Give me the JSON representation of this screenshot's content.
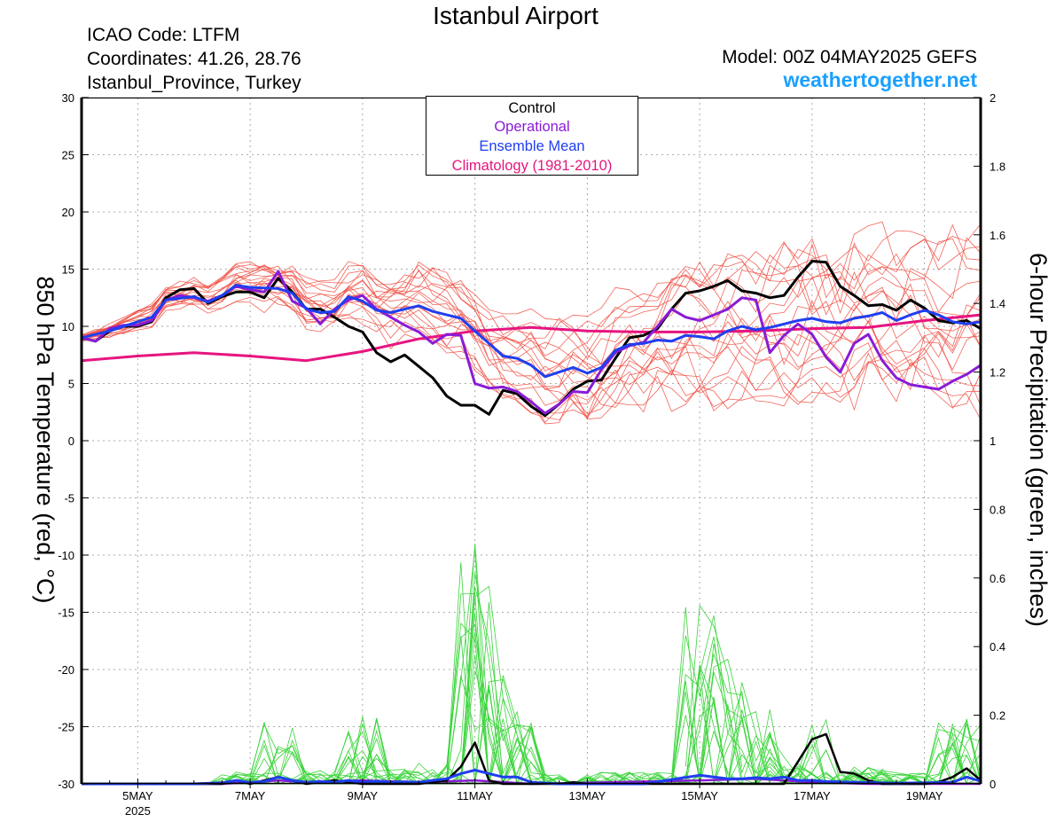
{
  "header": {
    "title": "Istanbul Airport",
    "icao": "ICAO Code: LTFM",
    "coordinates": "Coordinates: 41.26, 28.76",
    "location": "Istanbul_Province, Turkey",
    "model": "Model: 00Z 04MAY2025 GEFS",
    "website": "weathertogether.net"
  },
  "chart_data": {
    "type": "line",
    "title": "Istanbul Airport",
    "ylabel_left": "850 hPa Temperature (red, °C)",
    "ylabel_right": "6-hour Precipitation (green, inches)",
    "x_range_hours_since_start": [
      0,
      384
    ],
    "x_ticks": [
      {
        "label": "5MAY",
        "sublabel": "2025",
        "h": 24
      },
      {
        "label": "7MAY",
        "h": 72
      },
      {
        "label": "9MAY",
        "h": 120
      },
      {
        "label": "11MAY",
        "h": 168
      },
      {
        "label": "13MAY",
        "h": 216
      },
      {
        "label": "15MAY",
        "h": 264
      },
      {
        "label": "17MAY",
        "h": 312
      },
      {
        "label": "19MAY",
        "h": 360
      }
    ],
    "y_left": {
      "range": [
        -30,
        30
      ],
      "ticks": [
        "30",
        "25",
        "20",
        "15",
        "10",
        "5",
        "0",
        "-5",
        "-10",
        "-15",
        "-20",
        "-25",
        "-30"
      ]
    },
    "y_right": {
      "range": [
        0,
        2
      ],
      "ticks": [
        "2",
        "1.8",
        "1.6",
        "1.4",
        "1.2",
        "1",
        "0.8",
        "0.6",
        "0.4",
        "0.2",
        "0"
      ]
    },
    "grid": true,
    "legend": {
      "placement": "top-center",
      "entries": [
        {
          "label": "Control",
          "color": "#000000"
        },
        {
          "label": "Operational",
          "color": "#8a1bd6"
        },
        {
          "label": "Ensemble Mean",
          "color": "#1f3ff0"
        },
        {
          "label": "Climatology (1981-2010)",
          "color": "#e6157f"
        }
      ]
    },
    "colors": {
      "members_temp": "#f04a3e",
      "members_precip": "#3ad43a",
      "control": "#000000",
      "operational": "#8a1bd6",
      "ensemble_mean": "#1f3ff0",
      "climatology": "#e6157f"
    },
    "series_temperature": {
      "control": [
        [
          0,
          9
        ],
        [
          6,
          8.7
        ],
        [
          12,
          9.6
        ],
        [
          18,
          10
        ],
        [
          24,
          10
        ],
        [
          30,
          10.4
        ],
        [
          36,
          12.5
        ],
        [
          42,
          13.2
        ],
        [
          48,
          13.3
        ],
        [
          54,
          12
        ],
        [
          60,
          12.6
        ],
        [
          66,
          13
        ],
        [
          72,
          13
        ],
        [
          78,
          12.5
        ],
        [
          84,
          14.2
        ],
        [
          90,
          13
        ],
        [
          96,
          11.5
        ],
        [
          102,
          11.5
        ],
        [
          108,
          10.8
        ],
        [
          114,
          10
        ],
        [
          120,
          9.5
        ],
        [
          126,
          7.7
        ],
        [
          132,
          6.9
        ],
        [
          138,
          7.5
        ],
        [
          144,
          6.5
        ],
        [
          150,
          5.5
        ],
        [
          156,
          3.9
        ],
        [
          162,
          3.1
        ],
        [
          168,
          3.1
        ],
        [
          174,
          2.3
        ],
        [
          180,
          4.4
        ],
        [
          186,
          4.1
        ],
        [
          192,
          3
        ],
        [
          198,
          2.2
        ],
        [
          204,
          3.2
        ],
        [
          210,
          4.5
        ],
        [
          216,
          5.2
        ],
        [
          222,
          5.3
        ],
        [
          228,
          7.2
        ],
        [
          234,
          9
        ],
        [
          240,
          9.2
        ],
        [
          246,
          9.8
        ],
        [
          252,
          11.5
        ],
        [
          258,
          12.9
        ],
        [
          264,
          13.1
        ],
        [
          270,
          13.5
        ],
        [
          276,
          14
        ],
        [
          282,
          13.1
        ],
        [
          288,
          12.9
        ],
        [
          294,
          12.5
        ],
        [
          300,
          12.7
        ],
        [
          306,
          14.3
        ],
        [
          312,
          15.7
        ],
        [
          318,
          15.6
        ],
        [
          324,
          13.5
        ],
        [
          330,
          12.7
        ],
        [
          336,
          11.8
        ],
        [
          342,
          11.9
        ],
        [
          348,
          11.4
        ],
        [
          354,
          12.3
        ],
        [
          360,
          11.6
        ],
        [
          366,
          10.5
        ],
        [
          372,
          10.3
        ],
        [
          378,
          10.5
        ],
        [
          384,
          9.8
        ]
      ],
      "operational": [
        [
          0,
          9
        ],
        [
          6,
          8.7
        ],
        [
          12,
          9.8
        ],
        [
          18,
          10.1
        ],
        [
          24,
          10.1
        ],
        [
          30,
          10.5
        ],
        [
          36,
          12.3
        ],
        [
          42,
          12.7
        ],
        [
          48,
          12.5
        ],
        [
          54,
          12.2
        ],
        [
          60,
          12.7
        ],
        [
          66,
          13.5
        ],
        [
          72,
          13.2
        ],
        [
          78,
          13
        ],
        [
          84,
          14.8
        ],
        [
          90,
          12.2
        ],
        [
          96,
          11.6
        ],
        [
          102,
          10.2
        ],
        [
          108,
          11.5
        ],
        [
          114,
          12.3
        ],
        [
          120,
          12.7
        ],
        [
          126,
          11.5
        ],
        [
          132,
          10.8
        ],
        [
          138,
          10.1
        ],
        [
          144,
          9.5
        ],
        [
          150,
          8.5
        ],
        [
          156,
          9.3
        ],
        [
          162,
          9.2
        ],
        [
          168,
          5
        ],
        [
          174,
          4.6
        ],
        [
          180,
          4.7
        ],
        [
          186,
          4.3
        ],
        [
          192,
          3.4
        ],
        [
          198,
          2.4
        ],
        [
          204,
          3.2
        ],
        [
          210,
          4.3
        ],
        [
          216,
          4.2
        ],
        [
          222,
          6.2
        ],
        [
          228,
          7.7
        ],
        [
          234,
          8.3
        ],
        [
          240,
          8.6
        ],
        [
          246,
          10
        ],
        [
          252,
          11.5
        ],
        [
          258,
          10.8
        ],
        [
          264,
          10.5
        ],
        [
          270,
          11
        ],
        [
          276,
          11.5
        ],
        [
          282,
          12.5
        ],
        [
          288,
          12.3
        ],
        [
          294,
          7.7
        ],
        [
          300,
          9.2
        ],
        [
          306,
          10.2
        ],
        [
          312,
          9.3
        ],
        [
          318,
          7.3
        ],
        [
          324,
          6
        ],
        [
          330,
          8.5
        ],
        [
          336,
          9.3
        ],
        [
          342,
          7
        ],
        [
          348,
          5.5
        ],
        [
          354,
          4.9
        ],
        [
          360,
          4.7
        ],
        [
          366,
          4.5
        ],
        [
          372,
          5.2
        ],
        [
          378,
          5.8
        ],
        [
          384,
          6.6
        ]
      ],
      "ensemble_mean": [
        [
          0,
          9
        ],
        [
          12,
          9.6
        ],
        [
          24,
          10.4
        ],
        [
          30,
          10.8
        ],
        [
          36,
          12.3
        ],
        [
          48,
          12.6
        ],
        [
          54,
          12.1
        ],
        [
          60,
          12.7
        ],
        [
          66,
          13.6
        ],
        [
          72,
          13.4
        ],
        [
          84,
          13.3
        ],
        [
          90,
          12.9
        ],
        [
          96,
          11.5
        ],
        [
          102,
          11.2
        ],
        [
          108,
          11.3
        ],
        [
          114,
          12.6
        ],
        [
          120,
          12.2
        ],
        [
          126,
          11.4
        ],
        [
          132,
          11.2
        ],
        [
          138,
          11.5
        ],
        [
          144,
          11.8
        ],
        [
          150,
          11.3
        ],
        [
          156,
          11
        ],
        [
          162,
          10.7
        ],
        [
          168,
          9.6
        ],
        [
          174,
          8.5
        ],
        [
          180,
          7.4
        ],
        [
          186,
          7.2
        ],
        [
          192,
          6.6
        ],
        [
          198,
          5.6
        ],
        [
          204,
          6
        ],
        [
          210,
          6.4
        ],
        [
          216,
          5.9
        ],
        [
          222,
          6.4
        ],
        [
          228,
          7.9
        ],
        [
          234,
          8.4
        ],
        [
          240,
          8.5
        ],
        [
          246,
          8.8
        ],
        [
          252,
          8.7
        ],
        [
          258,
          9.2
        ],
        [
          264,
          9.1
        ],
        [
          270,
          8.9
        ],
        [
          276,
          9.6
        ],
        [
          282,
          10
        ],
        [
          288,
          9.7
        ],
        [
          294,
          9.9
        ],
        [
          300,
          10.2
        ],
        [
          306,
          10.5
        ],
        [
          312,
          10.7
        ],
        [
          318,
          10.4
        ],
        [
          324,
          10.3
        ],
        [
          330,
          10.7
        ],
        [
          336,
          10.9
        ],
        [
          342,
          11.2
        ],
        [
          348,
          10.5
        ],
        [
          354,
          11
        ],
        [
          360,
          11.4
        ],
        [
          366,
          11
        ],
        [
          372,
          10.4
        ],
        [
          378,
          10.2
        ],
        [
          384,
          10.4
        ]
      ],
      "climatology": [
        [
          0,
          7
        ],
        [
          24,
          7.4
        ],
        [
          48,
          7.7
        ],
        [
          72,
          7.4
        ],
        [
          96,
          7
        ],
        [
          120,
          7.8
        ],
        [
          144,
          8.9
        ],
        [
          168,
          9.6
        ],
        [
          192,
          9.9
        ],
        [
          216,
          9.6
        ],
        [
          240,
          9.5
        ],
        [
          264,
          9.5
        ],
        [
          288,
          9.6
        ],
        [
          312,
          9.8
        ],
        [
          336,
          9.9
        ],
        [
          360,
          10.5
        ],
        [
          384,
          11
        ]
      ]
    },
    "series_precipitation": {
      "control": [
        [
          0,
          0
        ],
        [
          48,
          0
        ],
        [
          60,
          0
        ],
        [
          66,
          0.01
        ],
        [
          72,
          0
        ],
        [
          78,
          0.01
        ],
        [
          84,
          0.02
        ],
        [
          90,
          0.01
        ],
        [
          96,
          0
        ],
        [
          108,
          0.01
        ],
        [
          114,
          0.005
        ],
        [
          120,
          0
        ],
        [
          144,
          0
        ],
        [
          156,
          0.01
        ],
        [
          162,
          0.05
        ],
        [
          168,
          0.12
        ],
        [
          174,
          0.01
        ],
        [
          180,
          0
        ],
        [
          204,
          0
        ],
        [
          210,
          0.005
        ],
        [
          216,
          0
        ],
        [
          300,
          0
        ],
        [
          312,
          0.13
        ],
        [
          318,
          0.145
        ],
        [
          324,
          0.035
        ],
        [
          330,
          0.03
        ],
        [
          336,
          0.01
        ],
        [
          342,
          0
        ],
        [
          360,
          0
        ],
        [
          366,
          0.005
        ],
        [
          372,
          0.02
        ],
        [
          378,
          0.045
        ],
        [
          384,
          0.01
        ]
      ],
      "operational": [
        [
          0,
          0
        ],
        [
          60,
          0
        ],
        [
          72,
          0.005
        ],
        [
          84,
          0.01
        ],
        [
          96,
          0.005
        ],
        [
          120,
          0.01
        ],
        [
          144,
          0.005
        ],
        [
          168,
          0.01
        ],
        [
          192,
          0
        ],
        [
          264,
          0.01
        ],
        [
          288,
          0.015
        ],
        [
          312,
          0.005
        ],
        [
          336,
          0
        ],
        [
          384,
          0
        ]
      ],
      "ensemble_mean": [
        [
          0,
          0
        ],
        [
          48,
          0
        ],
        [
          60,
          0.003
        ],
        [
          66,
          0.01
        ],
        [
          72,
          0.004
        ],
        [
          78,
          0.007
        ],
        [
          84,
          0.02
        ],
        [
          90,
          0.01
        ],
        [
          96,
          0.005
        ],
        [
          102,
          0.007
        ],
        [
          108,
          0.005
        ],
        [
          114,
          0.01
        ],
        [
          120,
          0.005
        ],
        [
          126,
          0.008
        ],
        [
          132,
          0.005
        ],
        [
          138,
          0.006
        ],
        [
          144,
          0.005
        ],
        [
          150,
          0.01
        ],
        [
          156,
          0.015
        ],
        [
          162,
          0.03
        ],
        [
          168,
          0.04
        ],
        [
          174,
          0.03
        ],
        [
          180,
          0.02
        ],
        [
          186,
          0.02
        ],
        [
          192,
          0.005
        ],
        [
          204,
          0
        ],
        [
          240,
          0
        ],
        [
          264,
          0.025
        ],
        [
          270,
          0.02
        ],
        [
          276,
          0.015
        ],
        [
          282,
          0.015
        ],
        [
          288,
          0.018
        ],
        [
          294,
          0.015
        ],
        [
          300,
          0.02
        ],
        [
          306,
          0.01
        ],
        [
          312,
          0.01
        ],
        [
          318,
          0.007
        ],
        [
          324,
          0.006
        ],
        [
          330,
          0.005
        ],
        [
          336,
          0.004
        ],
        [
          348,
          0.002
        ],
        [
          360,
          0.003
        ],
        [
          372,
          0.005
        ],
        [
          378,
          0.02
        ],
        [
          384,
          0.008
        ]
      ]
    }
  }
}
